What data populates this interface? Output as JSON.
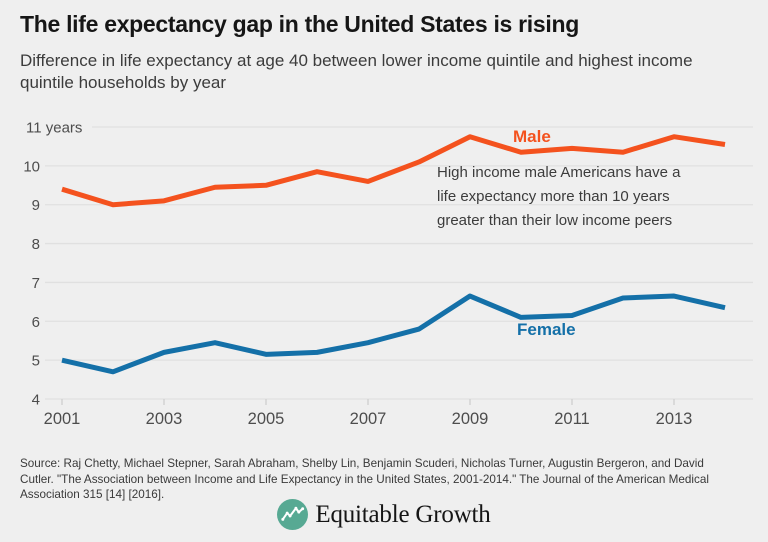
{
  "header": {
    "title": "The life expectancy gap in the United States is rising",
    "subtitle": "Difference in life expectancy at age 40 between lower income quintile and highest income quintile households by year"
  },
  "chart_data": {
    "type": "line",
    "x": [
      2001,
      2002,
      2003,
      2004,
      2005,
      2006,
      2007,
      2008,
      2009,
      2010,
      2011,
      2012,
      2013,
      2014
    ],
    "series": [
      {
        "name": "Male",
        "color": "#f4521e",
        "values": [
          9.4,
          9.0,
          9.1,
          9.45,
          9.5,
          9.85,
          9.6,
          10.1,
          10.75,
          10.35,
          10.45,
          10.35,
          10.75,
          10.55
        ]
      },
      {
        "name": "Female",
        "color": "#1470a8",
        "values": [
          5.0,
          4.7,
          5.2,
          5.45,
          5.15,
          5.2,
          5.45,
          5.8,
          6.65,
          6.1,
          6.15,
          6.6,
          6.65,
          6.35
        ]
      }
    ],
    "ylim": [
      4,
      11
    ],
    "yticks": [
      4,
      5,
      6,
      7,
      8,
      9,
      10,
      11
    ],
    "ytick_labels": [
      "4",
      "5",
      "6",
      "7",
      "8",
      "9",
      "10",
      "11 years"
    ],
    "xticks": [
      2001,
      2003,
      2005,
      2007,
      2009,
      2011,
      2013
    ],
    "xtick_labels": [
      "2001",
      "2003",
      "2005",
      "2007",
      "2009",
      "2011",
      "2013"
    ],
    "grid": "horizontal",
    "legend_position": "inline-labels",
    "male_label": "Male",
    "female_label": "Female",
    "annotation": "High income male Americans have a life expectancy more than 10 years greater than their low income peers"
  },
  "footer": {
    "source": "Source: Raj Chetty, Michael Stepner, Sarah Abraham, Shelby Lin, Benjamin Scuderi, Nicholas Turner, Augustin Bergeron, and David Cutler. \"The Association between Income and Life Expectancy in the United States, 2001-2014.\" The Journal of the American Medical Association 315 [14] [2016].",
    "logo_text": "Equitable Growth"
  },
  "colors": {
    "background": "#efefef",
    "male_line": "#f4521e",
    "female_line": "#1470a8",
    "grid_line": "#e0e0e0",
    "tick_mark": "#cfcfcf",
    "axis_text": "#4d4d4d",
    "title_text": "#161616",
    "body_text": "#3c3c3c",
    "logo_teal": "#57a993"
  }
}
